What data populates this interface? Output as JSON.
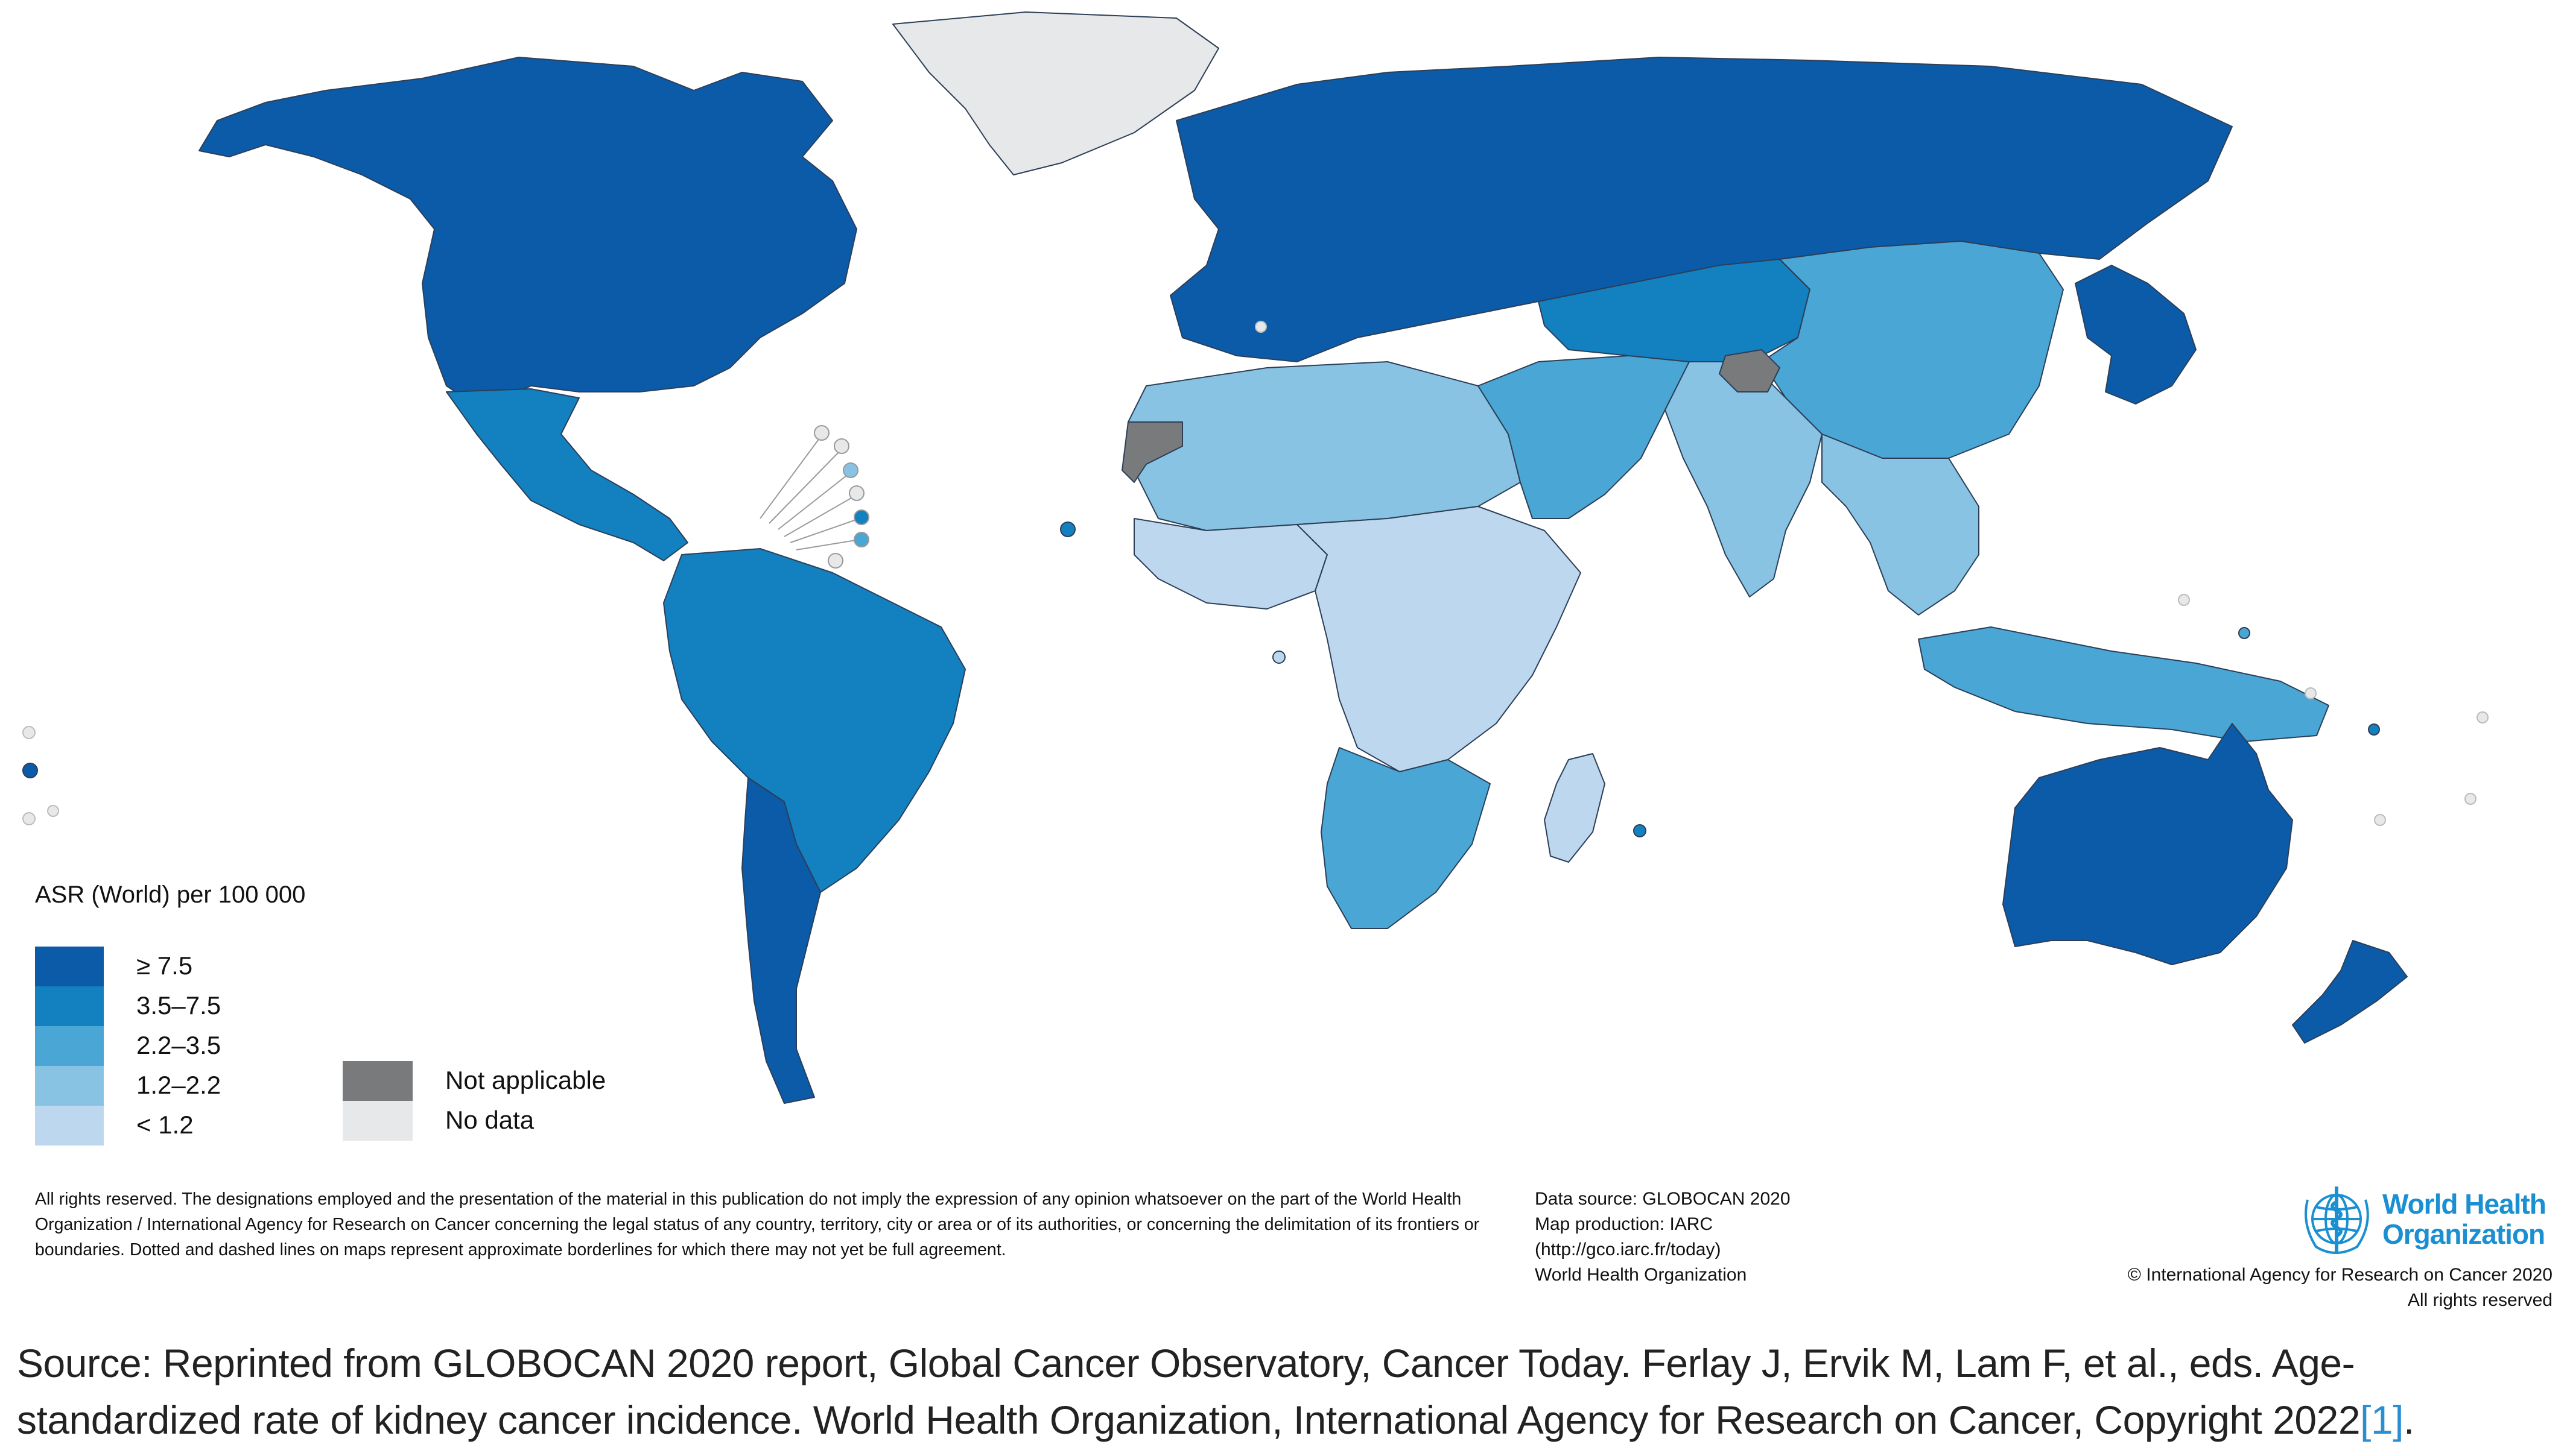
{
  "legend": {
    "title": "ASR (World) per 100 000",
    "classes": [
      {
        "label": "≥ 7.5",
        "color": "#0b5ba8"
      },
      {
        "label": "3.5–7.5",
        "color": "#1380c0"
      },
      {
        "label": "2.2–3.5",
        "color": "#4aa6d4"
      },
      {
        "label": "1.2–2.2",
        "color": "#88c3e3"
      },
      {
        "label": "< 1.2",
        "color": "#bdd8ee"
      }
    ],
    "extra": [
      {
        "label": "Not applicable",
        "color": "#787a7c"
      },
      {
        "label": "No data",
        "color": "#e7e8ea"
      }
    ]
  },
  "disclaimer": {
    "text": "All rights reserved. The designations employed and the presentation of the material in this publication do not imply the expression of any opinion whatsoever on the part of the World Health Organization / International Agency for Research on Cancer concerning the legal status of any country, territory, city or area or of its authorities, or concerning the delimitation of its frontiers or boundaries. Dotted and dashed lines on maps represent approximate borderlines for which there may not yet be full agreement."
  },
  "credits": {
    "data_source": "Data source: GLOBOCAN 2020",
    "map_production": "Map production: IARC",
    "link": "(http://gco.iarc.fr/today)",
    "org": "World Health Organization"
  },
  "who": {
    "name_line1": "World Health",
    "name_line2": "Organization",
    "copyright": "© International Agency for Research on Cancer 2020",
    "rights": "All rights reserved"
  },
  "source": {
    "text": "Source: Reprinted from GLOBOCAN 2020 report, Global Cancer Observatory, Cancer Today. Ferlay J, Ervik M, Lam F, et al., eds. Age-standardized rate of kidney cancer incidence. World Health Organization, International Agency for Research on Cancer, Copyright 2022",
    "ref": "[1]",
    "end": "."
  },
  "map": {
    "ocean_color": "#ffffff",
    "border_color": "#2c3e57",
    "regions": [
      {
        "name": "north-america",
        "class": "≥ 7.5",
        "color": "#0b5ba8"
      },
      {
        "name": "greenland",
        "class": "No data",
        "color": "#e7e8ea"
      },
      {
        "name": "mexico-central-america",
        "class": "3.5–7.5",
        "color": "#1380c0"
      },
      {
        "name": "south-america",
        "class": "3.5–7.5",
        "color": "#1380c0"
      },
      {
        "name": "argentina-chile",
        "class": "≥ 7.5",
        "color": "#0b5ba8"
      },
      {
        "name": "europe-russia",
        "class": "≥ 7.5",
        "color": "#0b5ba8"
      },
      {
        "name": "north-africa",
        "class": "1.2–2.2",
        "color": "#88c3e3"
      },
      {
        "name": "west-africa",
        "class": "< 1.2",
        "color": "#bdd8ee"
      },
      {
        "name": "central-africa",
        "class": "< 1.2",
        "color": "#bdd8ee"
      },
      {
        "name": "southern-africa",
        "class": "2.2–3.5",
        "color": "#4aa6d4"
      },
      {
        "name": "middle-east",
        "class": "2.2–3.5",
        "color": "#4aa6d4"
      },
      {
        "name": "central-asia",
        "class": "3.5–7.5",
        "color": "#1380c0"
      },
      {
        "name": "china",
        "class": "2.2–3.5",
        "color": "#4aa6d4"
      },
      {
        "name": "india",
        "class": "1.2–2.2",
        "color": "#88c3e3"
      },
      {
        "name": "southeast-asia",
        "class": "1.2–2.2",
        "color": "#88c3e3"
      },
      {
        "name": "japan-korea",
        "class": "≥ 7.5",
        "color": "#0b5ba8"
      },
      {
        "name": "indonesia",
        "class": "2.2–3.5",
        "color": "#4aa6d4"
      },
      {
        "name": "australia",
        "class": "≥ 7.5",
        "color": "#0b5ba8"
      },
      {
        "name": "new-zealand",
        "class": "≥ 7.5",
        "color": "#0b5ba8"
      },
      {
        "name": "madagascar",
        "class": "< 1.2",
        "color": "#bdd8ee"
      },
      {
        "name": "western-sahara",
        "class": "Not applicable",
        "color": "#787a7c"
      },
      {
        "name": "kashmir",
        "class": "Not applicable",
        "color": "#787a7c"
      }
    ]
  }
}
